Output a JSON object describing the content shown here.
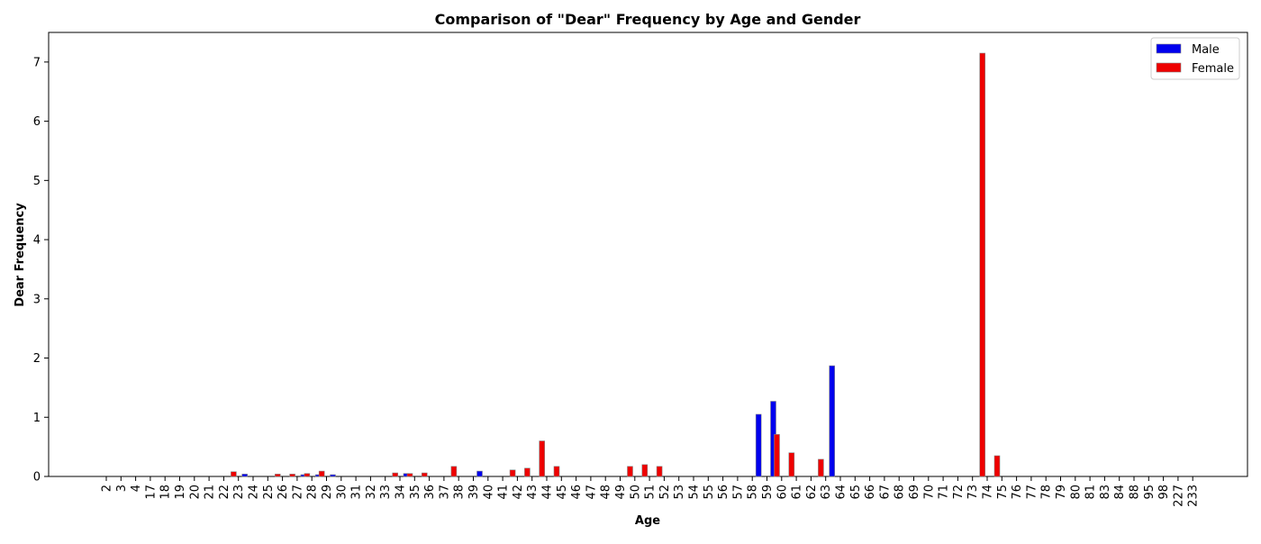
{
  "chart_data": {
    "type": "bar",
    "title": "Comparison of \"Dear\" Frequency by Age and Gender",
    "xlabel": "Age",
    "ylabel": "Dear Frequency",
    "ylim": [
      0,
      7.5
    ],
    "yticks": [
      0,
      1,
      2,
      3,
      4,
      5,
      6,
      7
    ],
    "grid": false,
    "legend_position": "top-right",
    "categories": [
      "2",
      "3",
      "4",
      "17",
      "18",
      "19",
      "20",
      "21",
      "22",
      "23",
      "24",
      "25",
      "26",
      "27",
      "28",
      "29",
      "30",
      "31",
      "32",
      "33",
      "34",
      "35",
      "36",
      "37",
      "38",
      "39",
      "40",
      "41",
      "42",
      "43",
      "44",
      "45",
      "46",
      "47",
      "48",
      "49",
      "50",
      "51",
      "52",
      "53",
      "54",
      "55",
      "56",
      "57",
      "58",
      "59",
      "60",
      "61",
      "62",
      "63",
      "64",
      "65",
      "66",
      "67",
      "68",
      "69",
      "70",
      "71",
      "72",
      "73",
      "74",
      "75",
      "76",
      "77",
      "78",
      "79",
      "80",
      "81",
      "83",
      "84",
      "88",
      "95",
      "98",
      "227",
      "233"
    ],
    "series": [
      {
        "name": "Male",
        "color": "#0000ee",
        "values": [
          0,
          0,
          0,
          0,
          0,
          0,
          0,
          0,
          0,
          0.04,
          0,
          0,
          0,
          0.03,
          0.03,
          0.03,
          0,
          0,
          0,
          0,
          0.05,
          0,
          0,
          0,
          0,
          0.09,
          0,
          0,
          0,
          0,
          0,
          0,
          0,
          0,
          0,
          0,
          0,
          0,
          0,
          0,
          0,
          0,
          0,
          0,
          1.05,
          1.27,
          0,
          0,
          0,
          1.87,
          0,
          0,
          0,
          0,
          0,
          0,
          0,
          0,
          0,
          0,
          0,
          0,
          0,
          0,
          0,
          0,
          0,
          0,
          0,
          0,
          0,
          0,
          0,
          0,
          0
        ]
      },
      {
        "name": "Female",
        "color": "#ee0000",
        "values": [
          0,
          0,
          0,
          0,
          0,
          0,
          0,
          0,
          0.08,
          0,
          0,
          0.04,
          0.04,
          0.05,
          0.09,
          0,
          0,
          0,
          0,
          0.06,
          0.05,
          0.06,
          0,
          0.17,
          0,
          0,
          0,
          0.11,
          0.14,
          0.6,
          0.17,
          0,
          0,
          0,
          0,
          0.17,
          0.2,
          0.17,
          0,
          0,
          0,
          0,
          0,
          0,
          0,
          0.71,
          0.4,
          0,
          0.29,
          0,
          0,
          0,
          0,
          0,
          0,
          0,
          0,
          0,
          0,
          7.15,
          0.35,
          0,
          0,
          0,
          0,
          0,
          0,
          0,
          0,
          0,
          0,
          0,
          0,
          0,
          0
        ]
      }
    ]
  }
}
